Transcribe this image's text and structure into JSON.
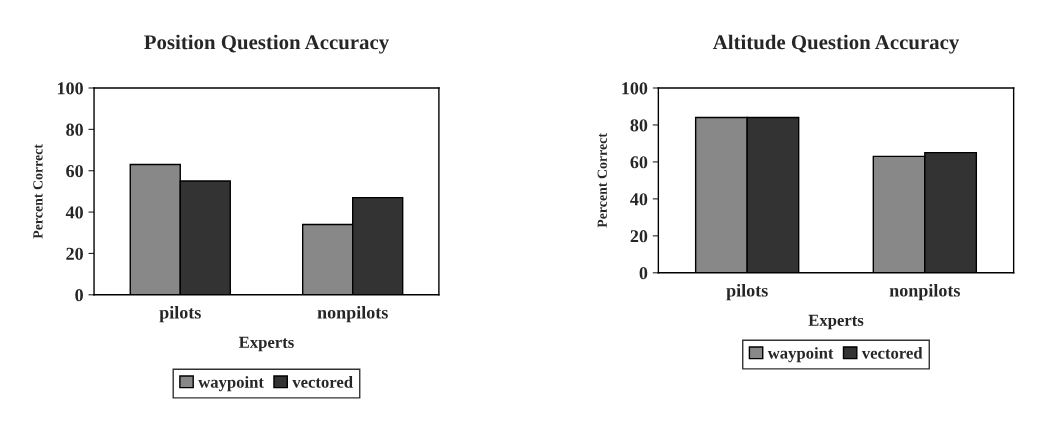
{
  "chart_data": [
    {
      "type": "bar",
      "title": "Position Question Accuracy",
      "xlabel": "Experts",
      "ylabel": "Percent Correct",
      "categories": [
        "pilots",
        "nonpilots"
      ],
      "series": [
        {
          "name": "waypoint",
          "color": "#888888",
          "values": [
            63,
            34
          ]
        },
        {
          "name": "vectored",
          "color": "#333333",
          "values": [
            55,
            47
          ]
        }
      ],
      "ylim": [
        0,
        100
      ],
      "yticks": [
        0,
        20,
        40,
        60,
        80,
        100
      ],
      "legend": "bottom"
    },
    {
      "type": "bar",
      "title": "Altitude Question Accuracy",
      "xlabel": "Experts",
      "ylabel": "Percent Correct",
      "categories": [
        "pilots",
        "nonpilots"
      ],
      "series": [
        {
          "name": "waypoint",
          "color": "#888888",
          "values": [
            84,
            63
          ]
        },
        {
          "name": "vectored",
          "color": "#333333",
          "values": [
            84,
            65
          ]
        }
      ],
      "ylim": [
        0,
        100
      ],
      "yticks": [
        0,
        20,
        40,
        60,
        80,
        100
      ],
      "legend": "bottom"
    }
  ]
}
